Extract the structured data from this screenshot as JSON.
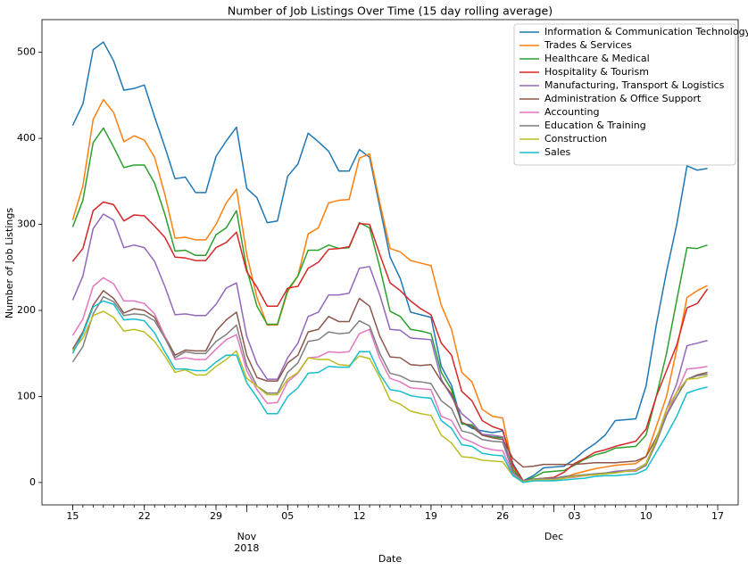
{
  "chart_data": {
    "type": "line",
    "title": "Number of Job Listings Over Time (15 day rolling average)",
    "xlabel": "Date",
    "ylabel": "Number of Job Listings",
    "legend": "upper right",
    "x": [
      "2018-10-15",
      "2018-10-16",
      "2018-10-17",
      "2018-10-18",
      "2018-10-19",
      "2018-10-20",
      "2018-10-21",
      "2018-10-22",
      "2018-10-23",
      "2018-10-24",
      "2018-10-25",
      "2018-10-26",
      "2018-10-27",
      "2018-10-28",
      "2018-10-29",
      "2018-10-30",
      "2018-10-31",
      "2018-11-01",
      "2018-11-02",
      "2018-11-03",
      "2018-11-04",
      "2018-11-05",
      "2018-11-06",
      "2018-11-07",
      "2018-11-08",
      "2018-11-09",
      "2018-11-10",
      "2018-11-11",
      "2018-11-12",
      "2018-11-13",
      "2018-11-14",
      "2018-11-15",
      "2018-11-16",
      "2018-11-17",
      "2018-11-18",
      "2018-11-19",
      "2018-11-20",
      "2018-11-21",
      "2018-11-22",
      "2018-11-23",
      "2018-11-24",
      "2018-11-25",
      "2018-11-26",
      "2018-11-27",
      "2018-11-28",
      "2018-11-29",
      "2018-11-30",
      "2018-12-01",
      "2018-12-02",
      "2018-12-03",
      "2018-12-04",
      "2018-12-05",
      "2018-12-06",
      "2018-12-07",
      "2018-12-08",
      "2018-12-09",
      "2018-12-10",
      "2018-12-11",
      "2018-12-12",
      "2018-12-13",
      "2018-12-14",
      "2018-12-15",
      "2018-12-16"
    ],
    "xlim": [
      "2018-10-12",
      "2018-12-19"
    ],
    "xticks": [
      {
        "value": "2018-10-15",
        "label": "15"
      },
      {
        "value": "2018-10-22",
        "label": "22"
      },
      {
        "value": "2018-10-29",
        "label": "29"
      },
      {
        "value": "2018-11-05",
        "label": "05"
      },
      {
        "value": "2018-11-12",
        "label": "12"
      },
      {
        "value": "2018-11-19",
        "label": "19"
      },
      {
        "value": "2018-11-26",
        "label": "26"
      },
      {
        "value": "2018-12-03",
        "label": "03"
      },
      {
        "value": "2018-12-10",
        "label": "10"
      },
      {
        "value": "2018-12-17",
        "label": "17"
      }
    ],
    "month_labels": [
      {
        "value": "2018-11-01",
        "label": "Nov",
        "year": "2018"
      },
      {
        "value": "2018-12-01",
        "label": "Dec"
      }
    ],
    "ylim": [
      -26,
      538
    ],
    "yticks": [
      0,
      100,
      200,
      300,
      400,
      500
    ],
    "series": [
      {
        "name": "Information & Communication Technology",
        "color": "#1f77b4",
        "values": [
          415,
          440,
          503,
          512,
          490,
          456,
          458,
          462,
          425,
          390,
          353,
          355,
          337,
          337,
          379,
          397,
          413,
          342,
          331,
          302,
          304,
          356,
          370,
          406,
          396,
          385,
          362,
          362,
          387,
          378,
          320,
          262,
          237,
          198,
          195,
          192,
          135,
          113,
          70,
          63,
          60,
          58,
          60,
          22,
          2,
          8,
          17,
          18,
          19,
          27,
          37,
          45,
          55,
          72,
          73,
          74,
          112,
          183,
          245,
          300,
          368,
          363,
          365
        ]
      },
      {
        "name": "Trades & Services",
        "color": "#ff7f0e",
        "values": [
          305,
          345,
          422,
          445,
          430,
          396,
          403,
          398,
          378,
          335,
          284,
          285,
          282,
          282,
          300,
          325,
          341,
          265,
          215,
          183,
          183,
          222,
          240,
          289,
          296,
          325,
          328,
          329,
          377,
          382,
          325,
          272,
          268,
          258,
          255,
          252,
          206,
          178,
          128,
          117,
          85,
          77,
          75,
          18,
          1,
          3,
          4,
          5,
          6,
          10,
          13,
          16,
          18,
          20,
          21,
          22,
          30,
          65,
          100,
          155,
          215,
          223,
          229
        ]
      },
      {
        "name": "Healthcare & Medical",
        "color": "#2ca02c",
        "values": [
          297,
          328,
          395,
          412,
          390,
          366,
          369,
          369,
          348,
          312,
          269,
          270,
          264,
          264,
          288,
          296,
          316,
          248,
          205,
          184,
          184,
          224,
          240,
          270,
          270,
          276,
          272,
          273,
          302,
          296,
          250,
          199,
          193,
          178,
          176,
          173,
          128,
          108,
          68,
          67,
          55,
          53,
          52,
          15,
          1,
          6,
          12,
          13,
          14,
          20,
          27,
          32,
          35,
          40,
          41,
          42,
          55,
          100,
          150,
          212,
          273,
          272,
          276
        ]
      },
      {
        "name": "Hospitality & Tourism",
        "color": "#d62728",
        "values": [
          257,
          272,
          316,
          326,
          323,
          304,
          311,
          310,
          298,
          285,
          262,
          261,
          258,
          258,
          273,
          279,
          291,
          245,
          227,
          205,
          205,
          226,
          228,
          249,
          256,
          271,
          272,
          274,
          301,
          300,
          265,
          232,
          223,
          211,
          202,
          195,
          162,
          148,
          106,
          95,
          72,
          65,
          61,
          20,
          2,
          4,
          5,
          6,
          12,
          22,
          28,
          35,
          38,
          42,
          45,
          48,
          62,
          100,
          130,
          160,
          203,
          208,
          225
        ]
      },
      {
        "name": "Manufacturing, Transport & Logistics",
        "color": "#9467bd",
        "values": [
          212,
          240,
          295,
          312,
          305,
          273,
          276,
          273,
          257,
          228,
          195,
          196,
          194,
          194,
          207,
          226,
          232,
          170,
          138,
          120,
          120,
          145,
          162,
          193,
          198,
          218,
          218,
          220,
          249,
          251,
          218,
          178,
          177,
          168,
          167,
          166,
          120,
          100,
          80,
          70,
          56,
          55,
          53,
          12,
          1,
          3,
          4,
          4,
          6,
          7,
          8,
          10,
          11,
          13,
          14,
          15,
          22,
          50,
          85,
          115,
          159,
          162,
          165
        ]
      },
      {
        "name": "Administration & Office Support",
        "color": "#8c564b",
        "values": [
          155,
          175,
          206,
          223,
          214,
          197,
          202,
          200,
          192,
          170,
          148,
          154,
          153,
          153,
          176,
          189,
          198,
          148,
          122,
          118,
          118,
          139,
          148,
          175,
          178,
          193,
          187,
          187,
          214,
          205,
          170,
          146,
          145,
          137,
          136,
          137,
          118,
          103,
          70,
          65,
          55,
          52,
          50,
          28,
          18,
          19,
          21,
          21,
          21,
          21,
          22,
          23,
          23,
          23,
          24,
          25,
          30,
          52,
          80,
          100,
          120,
          125,
          128
        ]
      },
      {
        "name": "Accounting",
        "color": "#e377c2",
        "values": [
          171,
          190,
          228,
          238,
          231,
          211,
          211,
          208,
          196,
          170,
          143,
          145,
          143,
          143,
          155,
          166,
          172,
          130,
          108,
          92,
          93,
          117,
          127,
          145,
          146,
          152,
          151,
          152,
          173,
          178,
          144,
          121,
          117,
          110,
          109,
          108,
          77,
          72,
          52,
          47,
          41,
          38,
          37,
          10,
          1,
          3,
          4,
          4,
          5,
          6,
          8,
          9,
          10,
          12,
          13,
          13,
          20,
          48,
          80,
          105,
          132,
          133,
          135
        ]
      },
      {
        "name": "Education & Training",
        "color": "#7f7f7f",
        "values": [
          140,
          158,
          196,
          216,
          210,
          194,
          196,
          195,
          188,
          168,
          145,
          152,
          150,
          150,
          164,
          172,
          183,
          136,
          112,
          104,
          104,
          128,
          139,
          164,
          166,
          175,
          173,
          174,
          188,
          182,
          150,
          127,
          124,
          118,
          117,
          115,
          95,
          86,
          60,
          57,
          50,
          48,
          47,
          12,
          2,
          4,
          5,
          5,
          7,
          8,
          9,
          10,
          11,
          12,
          13,
          14,
          20,
          46,
          78,
          100,
          120,
          124,
          126
        ]
      },
      {
        "name": "Construction",
        "color": "#bcbd22",
        "values": [
          153,
          168,
          194,
          199,
          192,
          176,
          178,
          175,
          164,
          147,
          128,
          131,
          125,
          125,
          135,
          143,
          153,
          121,
          112,
          102,
          102,
          120,
          128,
          145,
          143,
          143,
          137,
          136,
          147,
          144,
          122,
          96,
          91,
          83,
          80,
          78,
          55,
          46,
          30,
          29,
          26,
          25,
          24,
          8,
          1,
          3,
          3,
          3,
          5,
          7,
          8,
          9,
          10,
          11,
          13,
          14,
          22,
          50,
          85,
          105,
          120,
          121,
          124
        ]
      },
      {
        "name": "Sales",
        "color": "#17becf",
        "values": [
          150,
          173,
          204,
          211,
          207,
          189,
          190,
          188,
          174,
          152,
          132,
          132,
          130,
          130,
          140,
          148,
          148,
          116,
          99,
          80,
          80,
          100,
          110,
          127,
          128,
          135,
          134,
          134,
          152,
          152,
          126,
          108,
          106,
          101,
          99,
          98,
          72,
          63,
          44,
          42,
          34,
          32,
          31,
          8,
          0,
          2,
          2,
          2,
          3,
          4,
          5,
          7,
          8,
          8,
          9,
          10,
          15,
          35,
          55,
          77,
          104,
          108,
          111
        ]
      }
    ]
  }
}
